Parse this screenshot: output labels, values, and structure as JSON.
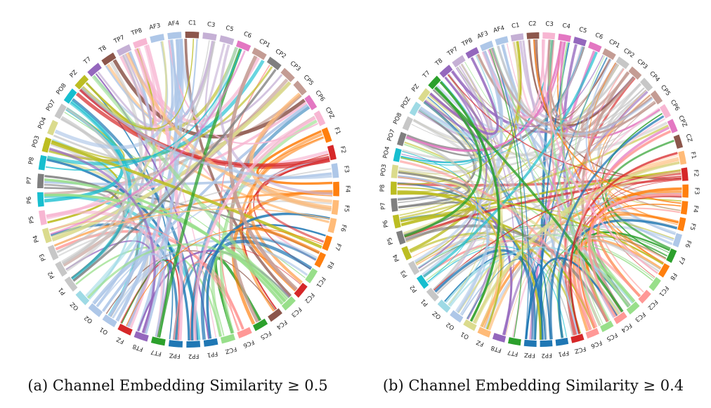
{
  "panels": [
    {
      "id": "a",
      "caption_prefix": "(a) Channel Embedding Similarity",
      "caption_relation": "≥",
      "caption_threshold": "0.5",
      "channels": [
        "F1",
        "F2",
        "F3",
        "F4",
        "F5",
        "F6",
        "F7",
        "F8",
        "FC1",
        "FC2",
        "FC3",
        "FC4",
        "FC5",
        "FC6",
        "FCZ",
        "FP1",
        "FP2",
        "FPZ",
        "FT7",
        "FT8",
        "FZ",
        "O1",
        "O2",
        "OZ",
        "P1",
        "P2",
        "P3",
        "P4",
        "P5",
        "P6",
        "P7",
        "P8",
        "PO3",
        "PO4",
        "PO7",
        "PO8",
        "PZ",
        "T7",
        "T8",
        "TP7",
        "TP8",
        "AF3",
        "AF4",
        "C1",
        "C3",
        "C5",
        "C6",
        "CP1",
        "CP2",
        "CP3",
        "CP5",
        "CP6",
        "CPZ"
      ],
      "colors": [
        "#ff7f0e",
        "#d62728",
        "#aec7e8",
        "#ff7f0e",
        "#ffbb78",
        "#ffbb78",
        "#ff7f0e",
        "#ff7f0e",
        "#98df8a",
        "#d62728",
        "#98df8a",
        "#8c564b",
        "#2ca02c",
        "#ff9896",
        "#98df8a",
        "#1f77b4",
        "#1f77b4",
        "#1f77b4",
        "#2ca02c",
        "#9467bd",
        "#d62728",
        "#aec7e8",
        "#aec7e8",
        "#9edae5",
        "#c7c7c7",
        "#c7c7c7",
        "#c7c7c7",
        "#dbdb8d",
        "#f7b6d2",
        "#17becf",
        "#7f7f7f",
        "#17becf",
        "#bcbd22",
        "#dbdb8d",
        "#c7c7c7",
        "#17becf",
        "#bcbd22",
        "#9467bd",
        "#8c564b",
        "#c5b0d5",
        "#f7b6d2",
        "#aec7e8",
        "#aec7e8",
        "#8c564b",
        "#c5b0d5",
        "#c5b0d5",
        "#e377c2",
        "#c49c94",
        "#7f7f7f",
        "#c49c94",
        "#c49c94",
        "#e377c2",
        "#f7b6d2"
      ]
    },
    {
      "id": "b",
      "caption_prefix": "(b) Channel Embedding Similarity",
      "caption_relation": "≥",
      "caption_threshold": "0.4",
      "channels": [
        "F1",
        "F2",
        "F3",
        "F4",
        "F5",
        "F6",
        "F7",
        "F8",
        "FC1",
        "FC2",
        "FC3",
        "FC4",
        "FC5",
        "FC6",
        "FCZ",
        "FP1",
        "FP2",
        "FPZ",
        "FT7",
        "FT8",
        "FZ",
        "O1",
        "O2",
        "OZ",
        "P1",
        "P2",
        "P3",
        "P4",
        "P5",
        "P6",
        "P7",
        "P8",
        "PO3",
        "PO4",
        "PO7",
        "PO8",
        "POZ",
        "PZ",
        "T7",
        "T8",
        "TP7",
        "TP8",
        "AF3",
        "AF4",
        "C1",
        "C2",
        "C3",
        "C4",
        "C5",
        "C6",
        "CP1",
        "CP2",
        "CP3",
        "CP4",
        "CP5",
        "CP6",
        "CPZ",
        "CZ"
      ],
      "colors": [
        "#ffbb78",
        "#d62728",
        "#ff7f0e",
        "#ff7f0e",
        "#ff7f0e",
        "#aec7e8",
        "#2ca02c",
        "#ff7f0e",
        "#98df8a",
        "#ff9896",
        "#98df8a",
        "#ff9896",
        "#98df8a",
        "#ff9896",
        "#d62728",
        "#1f77b4",
        "#1f77b4",
        "#1f77b4",
        "#2ca02c",
        "#9467bd",
        "#ffbb78",
        "#dbdb8d",
        "#aec7e8",
        "#9edae5",
        "#c7c7c7",
        "#17becf",
        "#c7c7c7",
        "#bcbd22",
        "#7f7f7f",
        "#bcbd22",
        "#7f7f7f",
        "#bcbd22",
        "#dbdb8d",
        "#17becf",
        "#7f7f7f",
        "#c7c7c7",
        "#9edae5",
        "#dbdb8d",
        "#2ca02c",
        "#9467bd",
        "#c5b0d5",
        "#9467bd",
        "#aec7e8",
        "#aec7e8",
        "#c5b0d5",
        "#8c564b",
        "#f7b6d2",
        "#e377c2",
        "#9467bd",
        "#e377c2",
        "#c49c94",
        "#c7c7c7",
        "#c49c94",
        "#c7c7c7",
        "#c49c94",
        "#f7b6d2",
        "#e377c2",
        "#8c564b"
      ]
    }
  ]
}
